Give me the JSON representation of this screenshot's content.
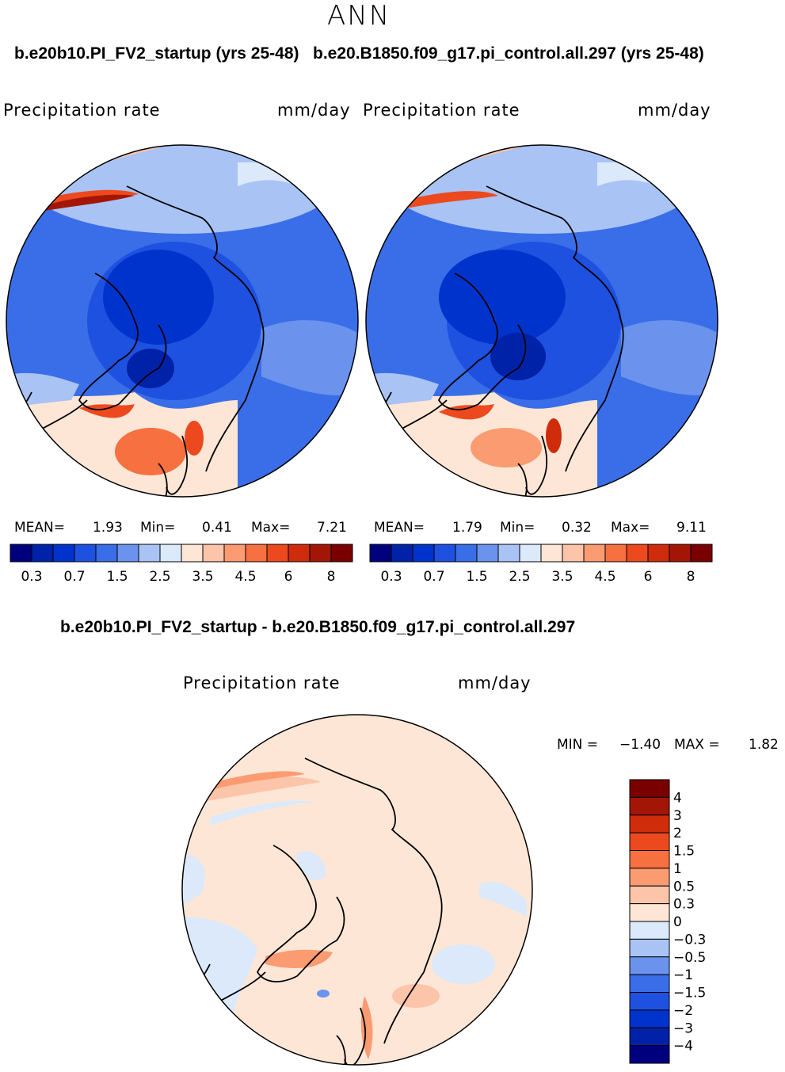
{
  "header": {
    "season": "ANN",
    "case_left": "b.e20b10.PI_FV2_startup (yrs 25-48)",
    "case_right": "b.e20.B1850.f09_g17.pi_control.all.297 (yrs 25-48)",
    "diff_title": "b.e20b10.PI_FV2_startup - b.e20.B1850.f09_g17.pi_control.all.297"
  },
  "colors": {
    "land_outline": "#000000",
    "background": "#ffffff",
    "abs_scale": [
      "#00007f",
      "#0022a8",
      "#0033cc",
      "#1f51e0",
      "#3a6ee8",
      "#6b93ee",
      "#a9c3f4",
      "#dbe9fb",
      "#fde6d6",
      "#fcc4a8",
      "#fb9b72",
      "#f7703f",
      "#ec4a1e",
      "#cf2c0c",
      "#a31606",
      "#7a0000"
    ],
    "diff_scale": [
      "#00007f",
      "#0022a8",
      "#0033cc",
      "#1f51e0",
      "#3a6ee8",
      "#6b93ee",
      "#a9c3f4",
      "#dbe9fb",
      "#fde6d6",
      "#fcc4a8",
      "#fb9b72",
      "#f7703f",
      "#ec4a1e",
      "#cf2c0c",
      "#a31606",
      "#7a0000"
    ]
  },
  "chart_data": [
    {
      "type": "heatmap",
      "projection": "north polar stereographic",
      "title": "Precipitation rate",
      "units": "mm/day",
      "case": "b.e20b10.PI_FV2_startup (yrs 25-48)",
      "mean": "1.93",
      "min": "0.41",
      "max": "7.21",
      "mean_label": "MEAN=",
      "min_label": "Min=",
      "max_label": "Max=",
      "colorbar_levels": [
        0.2,
        0.3,
        0.5,
        0.7,
        1,
        1.5,
        2,
        2.5,
        3,
        3.5,
        4,
        4.5,
        5,
        6,
        7,
        8
      ],
      "colorbar_tick_labels": [
        "0.3",
        "0.7",
        "1.5",
        "2.5",
        "3.5",
        "4.5",
        "6",
        "8"
      ]
    },
    {
      "type": "heatmap",
      "projection": "north polar stereographic",
      "title": "Precipitation rate",
      "units": "mm/day",
      "case": "b.e20.B1850.f09_g17.pi_control.all.297 (yrs 25-48)",
      "mean": "1.79",
      "min": "0.32",
      "max": "9.11",
      "mean_label": "MEAN=",
      "min_label": "Min=",
      "max_label": "Max=",
      "colorbar_levels": [
        0.2,
        0.3,
        0.5,
        0.7,
        1,
        1.5,
        2,
        2.5,
        3,
        3.5,
        4,
        4.5,
        5,
        6,
        7,
        8
      ],
      "colorbar_tick_labels": [
        "0.3",
        "0.7",
        "1.5",
        "2.5",
        "3.5",
        "4.5",
        "6",
        "8"
      ]
    },
    {
      "type": "heatmap",
      "projection": "north polar stereographic",
      "title": "Precipitation rate",
      "units": "mm/day",
      "case": "b.e20b10.PI_FV2_startup - b.e20.B1850.f09_g17.pi_control.all.297",
      "min": "−1.40",
      "max": "1.82",
      "min_label": "MIN =",
      "max_label": "MAX =",
      "colorbar_levels": [
        -4,
        -3,
        -2,
        -1.5,
        -1,
        -0.5,
        -0.3,
        0,
        0.3,
        0.5,
        1,
        1.5,
        2,
        3,
        4
      ],
      "colorbar_tick_labels": [
        "4",
        "3",
        "2",
        "1.5",
        "1",
        "0.5",
        "0.3",
        "0",
        "−0.3",
        "−0.5",
        "−1",
        "−1.5",
        "−2",
        "−3",
        "−4"
      ]
    }
  ]
}
